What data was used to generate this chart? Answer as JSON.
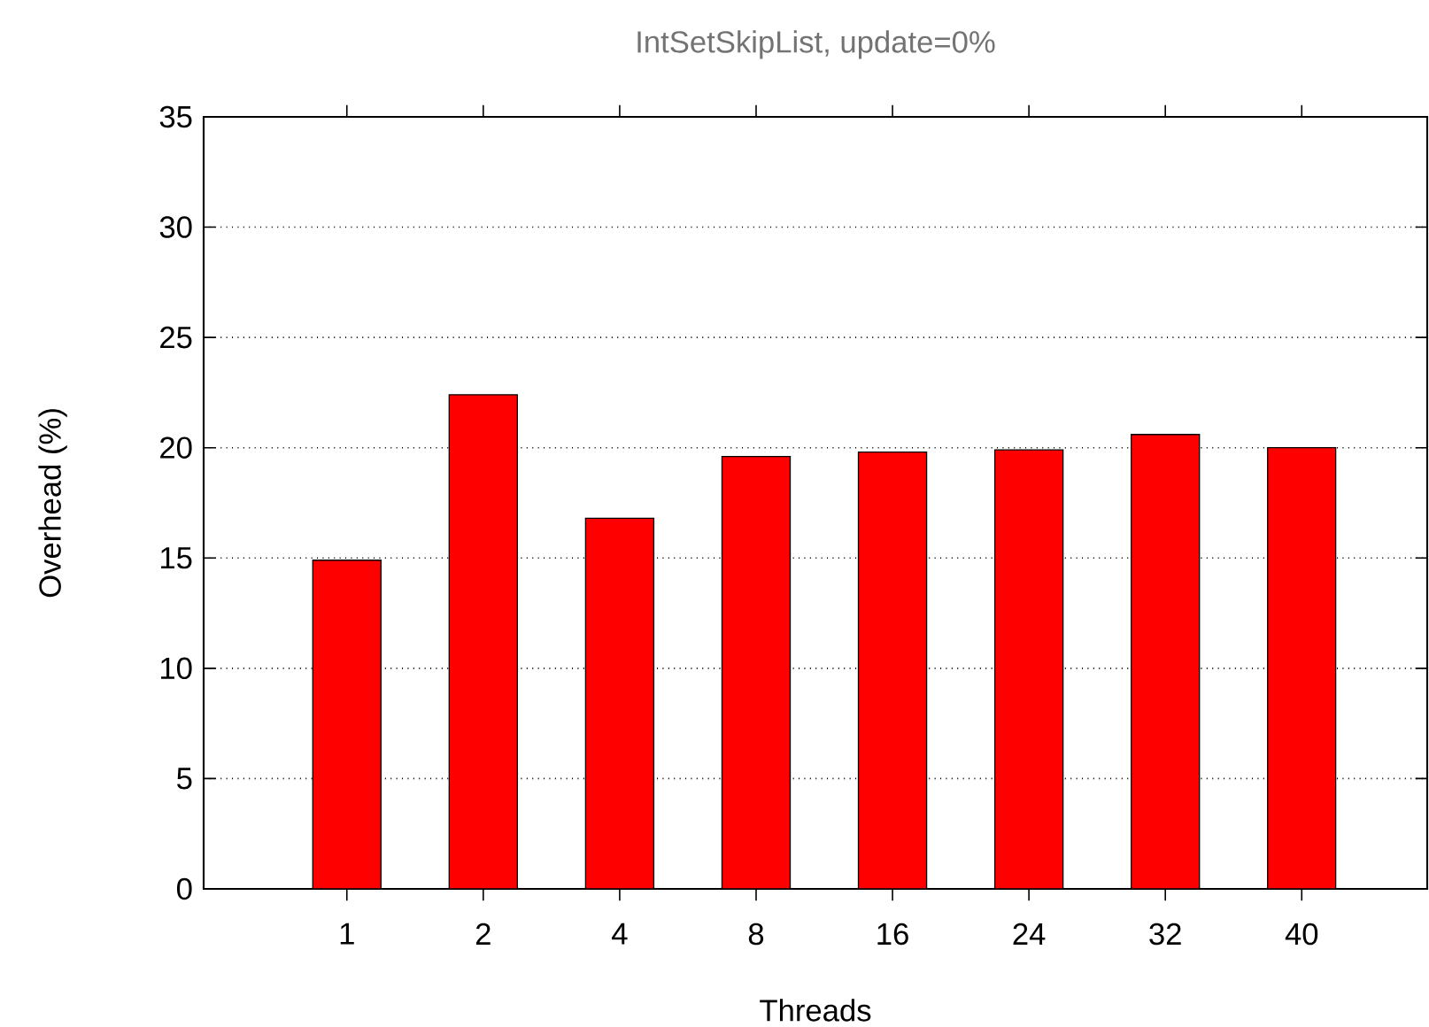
{
  "chart_data": {
    "type": "bar",
    "title": "IntSetSkipList, update=0%",
    "xlabel": "Threads",
    "ylabel": "Overhead (%)",
    "categories": [
      "1",
      "2",
      "4",
      "8",
      "16",
      "24",
      "32",
      "40"
    ],
    "values": [
      14.9,
      22.4,
      16.8,
      19.6,
      19.8,
      19.9,
      20.6,
      20.0
    ],
    "color": "#ff0000",
    "ylim": [
      0,
      35
    ],
    "yticks": [
      0,
      5,
      10,
      15,
      20,
      25,
      30,
      35
    ],
    "grid": "y"
  }
}
